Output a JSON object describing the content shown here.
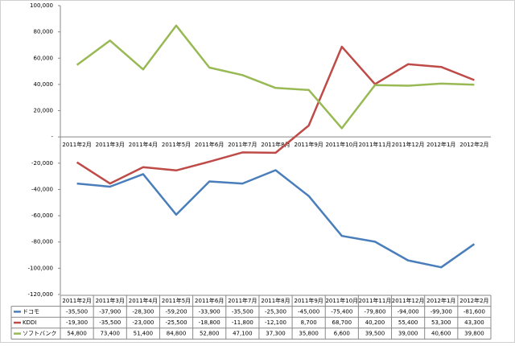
{
  "chart_data": {
    "type": "line",
    "categories": [
      "2011年2月",
      "2011年3月",
      "2011年4月",
      "2011年5月",
      "2011年6月",
      "2011年7月",
      "2011年8月",
      "2011年9月",
      "2011年10月",
      "2011年11月",
      "2011年12月",
      "2012年1月",
      "2012年2月"
    ],
    "series": [
      {
        "name": "ドコモ",
        "color": "#4a7ebb",
        "values": [
          -35500,
          -37900,
          -28300,
          -59200,
          -33900,
          -35500,
          -25300,
          -45000,
          -75400,
          -79800,
          -94000,
          -99300,
          -81600
        ],
        "value_labels": [
          "-35,500",
          "-37,900",
          "-28,300",
          "-59,200",
          "-33,900",
          "-35,500",
          "-25,300",
          "-45,000",
          "-75,400",
          "-79,800",
          "-94,000",
          "-99,300",
          "-81,600"
        ]
      },
      {
        "name": "KDDI",
        "color": "#be4b48",
        "values": [
          -19300,
          -35500,
          -23000,
          -25500,
          -18800,
          -11800,
          -12100,
          8700,
          68700,
          40200,
          55400,
          53300,
          43300
        ],
        "value_labels": [
          "-19,300",
          "-35,500",
          "-23,000",
          "-25,500",
          "-18,800",
          "-11,800",
          "-12,100",
          "8,700",
          "68,700",
          "40,200",
          "55,400",
          "53,300",
          "43,300"
        ]
      },
      {
        "name": "ソフトバンク",
        "color": "#98b954",
        "values": [
          54800,
          73400,
          51400,
          84800,
          52800,
          47100,
          37300,
          35800,
          6600,
          39500,
          39000,
          40600,
          39800
        ],
        "value_labels": [
          "54,800",
          "73,400",
          "51,400",
          "84,800",
          "52,800",
          "47,100",
          "37,300",
          "35,800",
          "6,600",
          "39,500",
          "39,000",
          "40,600",
          "39,800"
        ]
      }
    ],
    "ylim": [
      -120000,
      100000
    ],
    "yticks": [
      {
        "value": -120000,
        "label": "-120,000"
      },
      {
        "value": -100000,
        "label": "-100,000"
      },
      {
        "value": -80000,
        "label": "-80,000"
      },
      {
        "value": -60000,
        "label": "-60,000"
      },
      {
        "value": -40000,
        "label": "-40,000"
      },
      {
        "value": -20000,
        "label": "-20,000"
      },
      {
        "value": 0,
        "label": "-"
      },
      {
        "value": 20000,
        "label": "20,000"
      },
      {
        "value": 40000,
        "label": "40,000"
      },
      {
        "value": 60000,
        "label": "60,000"
      },
      {
        "value": 80000,
        "label": "80,000"
      },
      {
        "value": 100000,
        "label": "100,000"
      }
    ],
    "grid": false
  }
}
